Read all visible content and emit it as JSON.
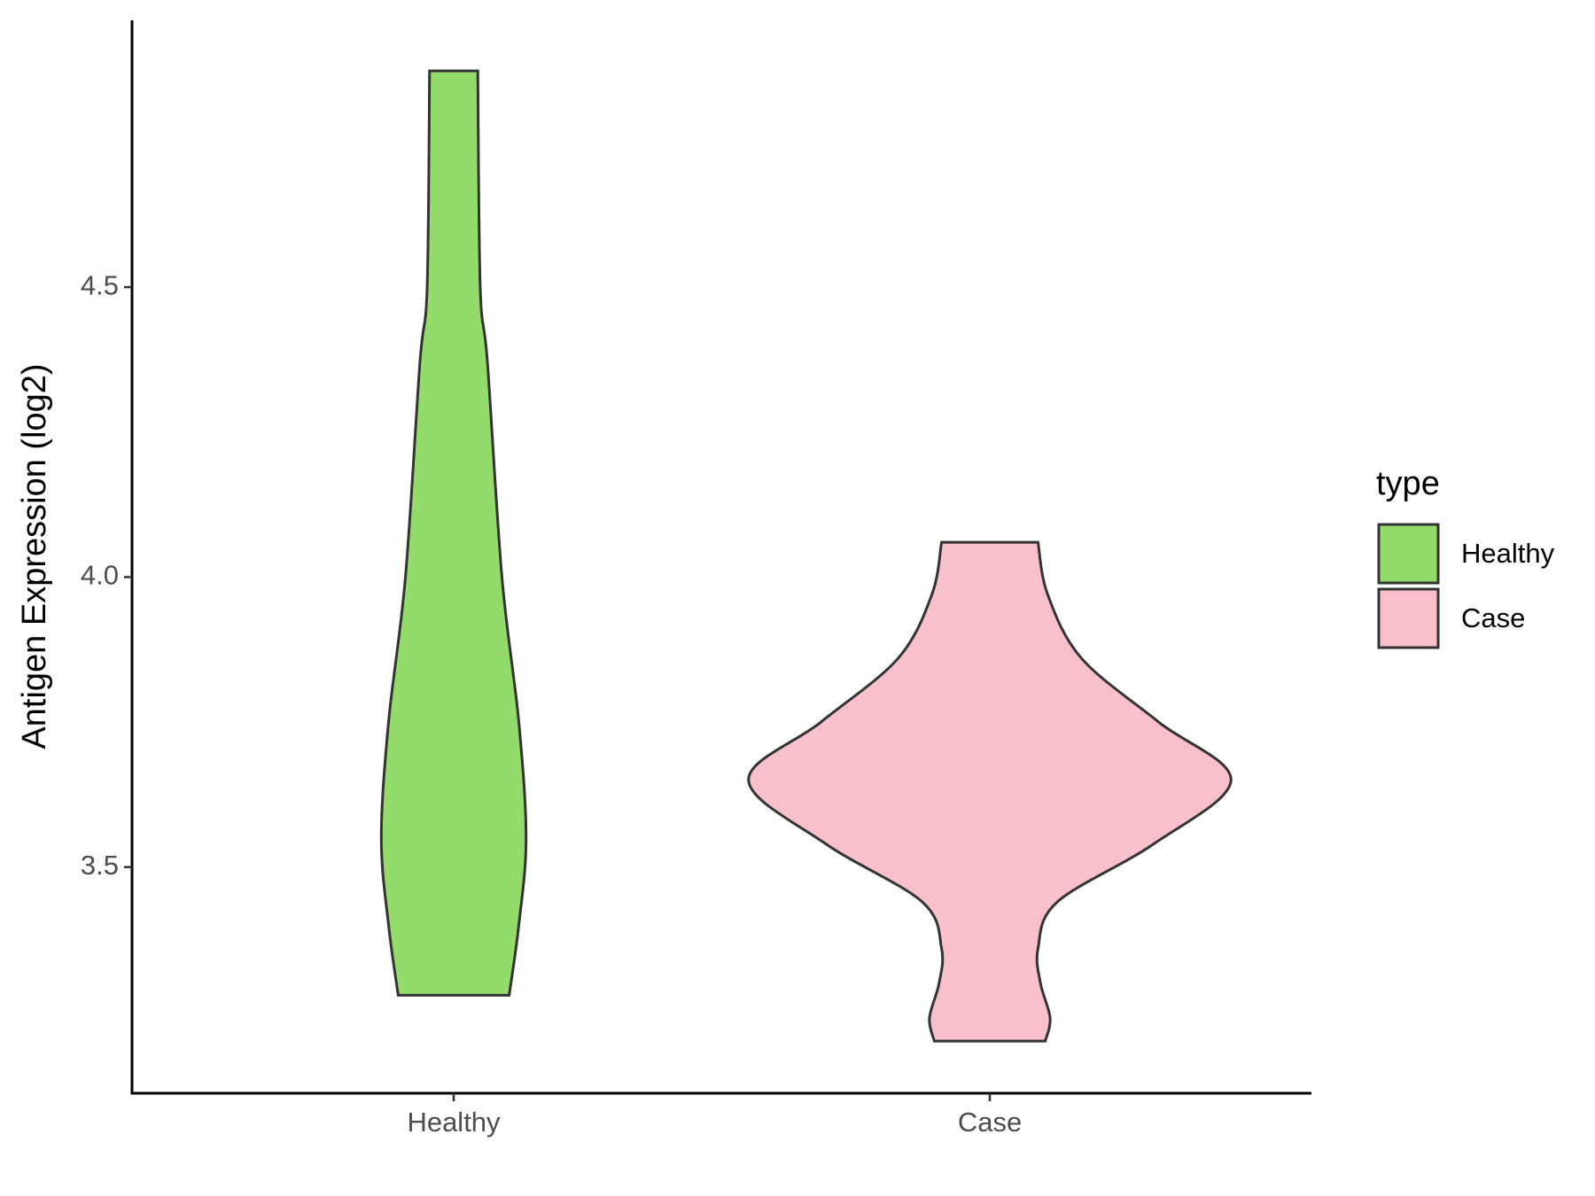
{
  "chart_data": {
    "type": "violin",
    "ylabel": "Antigen Expression (log2)",
    "categories": [
      "Healthy",
      "Case"
    ],
    "ylim": [
      3.11,
      4.96
    ],
    "yticks": [
      3.5,
      {
        "value": 4,
        "label": "4.0"
      },
      4.5
    ],
    "legend_title": "type",
    "legend_position": "right",
    "series": [
      {
        "name": "Healthy",
        "color": "#93dc6b",
        "y": [
          4.873,
          4.5,
          4.37,
          4.0,
          3.75,
          3.55,
          3.4,
          3.279
        ],
        "density": [
          0.1,
          0.11,
          0.14,
          0.2,
          0.27,
          0.3,
          0.27,
          0.23
        ]
      },
      {
        "name": "Case",
        "color": "#f8c0cb",
        "y": [
          4.06,
          3.97,
          3.86,
          3.75,
          3.65,
          3.54,
          3.44,
          3.36,
          3.3,
          3.24,
          3.2
        ],
        "density": [
          0.2,
          0.24,
          0.38,
          0.7,
          1.0,
          0.68,
          0.28,
          0.2,
          0.21,
          0.25,
          0.23
        ]
      }
    ]
  }
}
